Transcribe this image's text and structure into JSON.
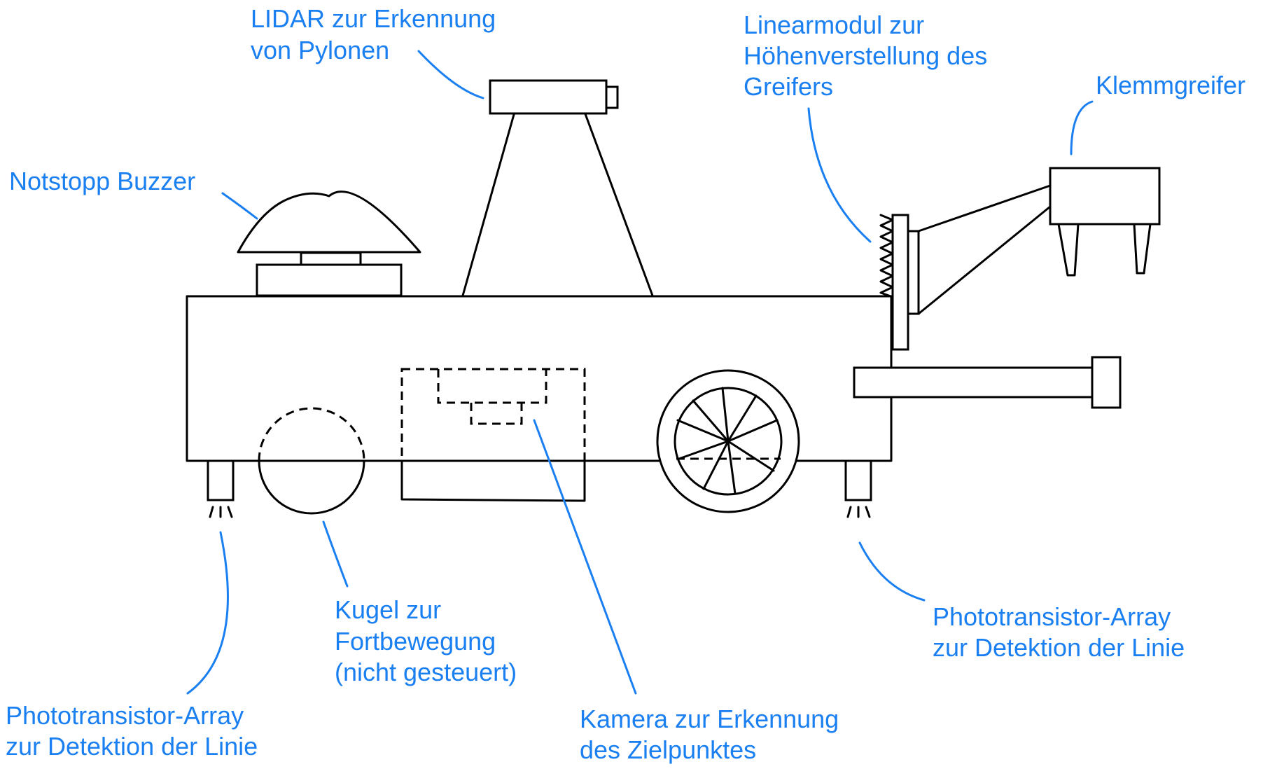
{
  "labels": {
    "lidar": [
      "LIDAR zur Erkennung",
      "von Pylonen"
    ],
    "linearmodul": [
      "Linearmodul zur",
      "Höhenverstellung des",
      "Greifers"
    ],
    "klemmgreifer": [
      "Klemmgreifer"
    ],
    "notstopp": [
      "Notstopp Buzzer"
    ],
    "kugel": [
      "Kugel zur",
      "Fortbewegung",
      "(nicht gesteuert)"
    ],
    "kamera": [
      "Kamera zur Erkennung",
      "des Zielpunktes"
    ],
    "phototransistor_left": [
      "Phototransistor-Array",
      "zur Detektion der Linie"
    ],
    "phototransistor_right": [
      "Phototransistor-Array",
      "zur Detektion der Linie"
    ]
  },
  "colors": {
    "label": "#1a7ff0",
    "line": "#000000",
    "background": "#ffffff"
  }
}
